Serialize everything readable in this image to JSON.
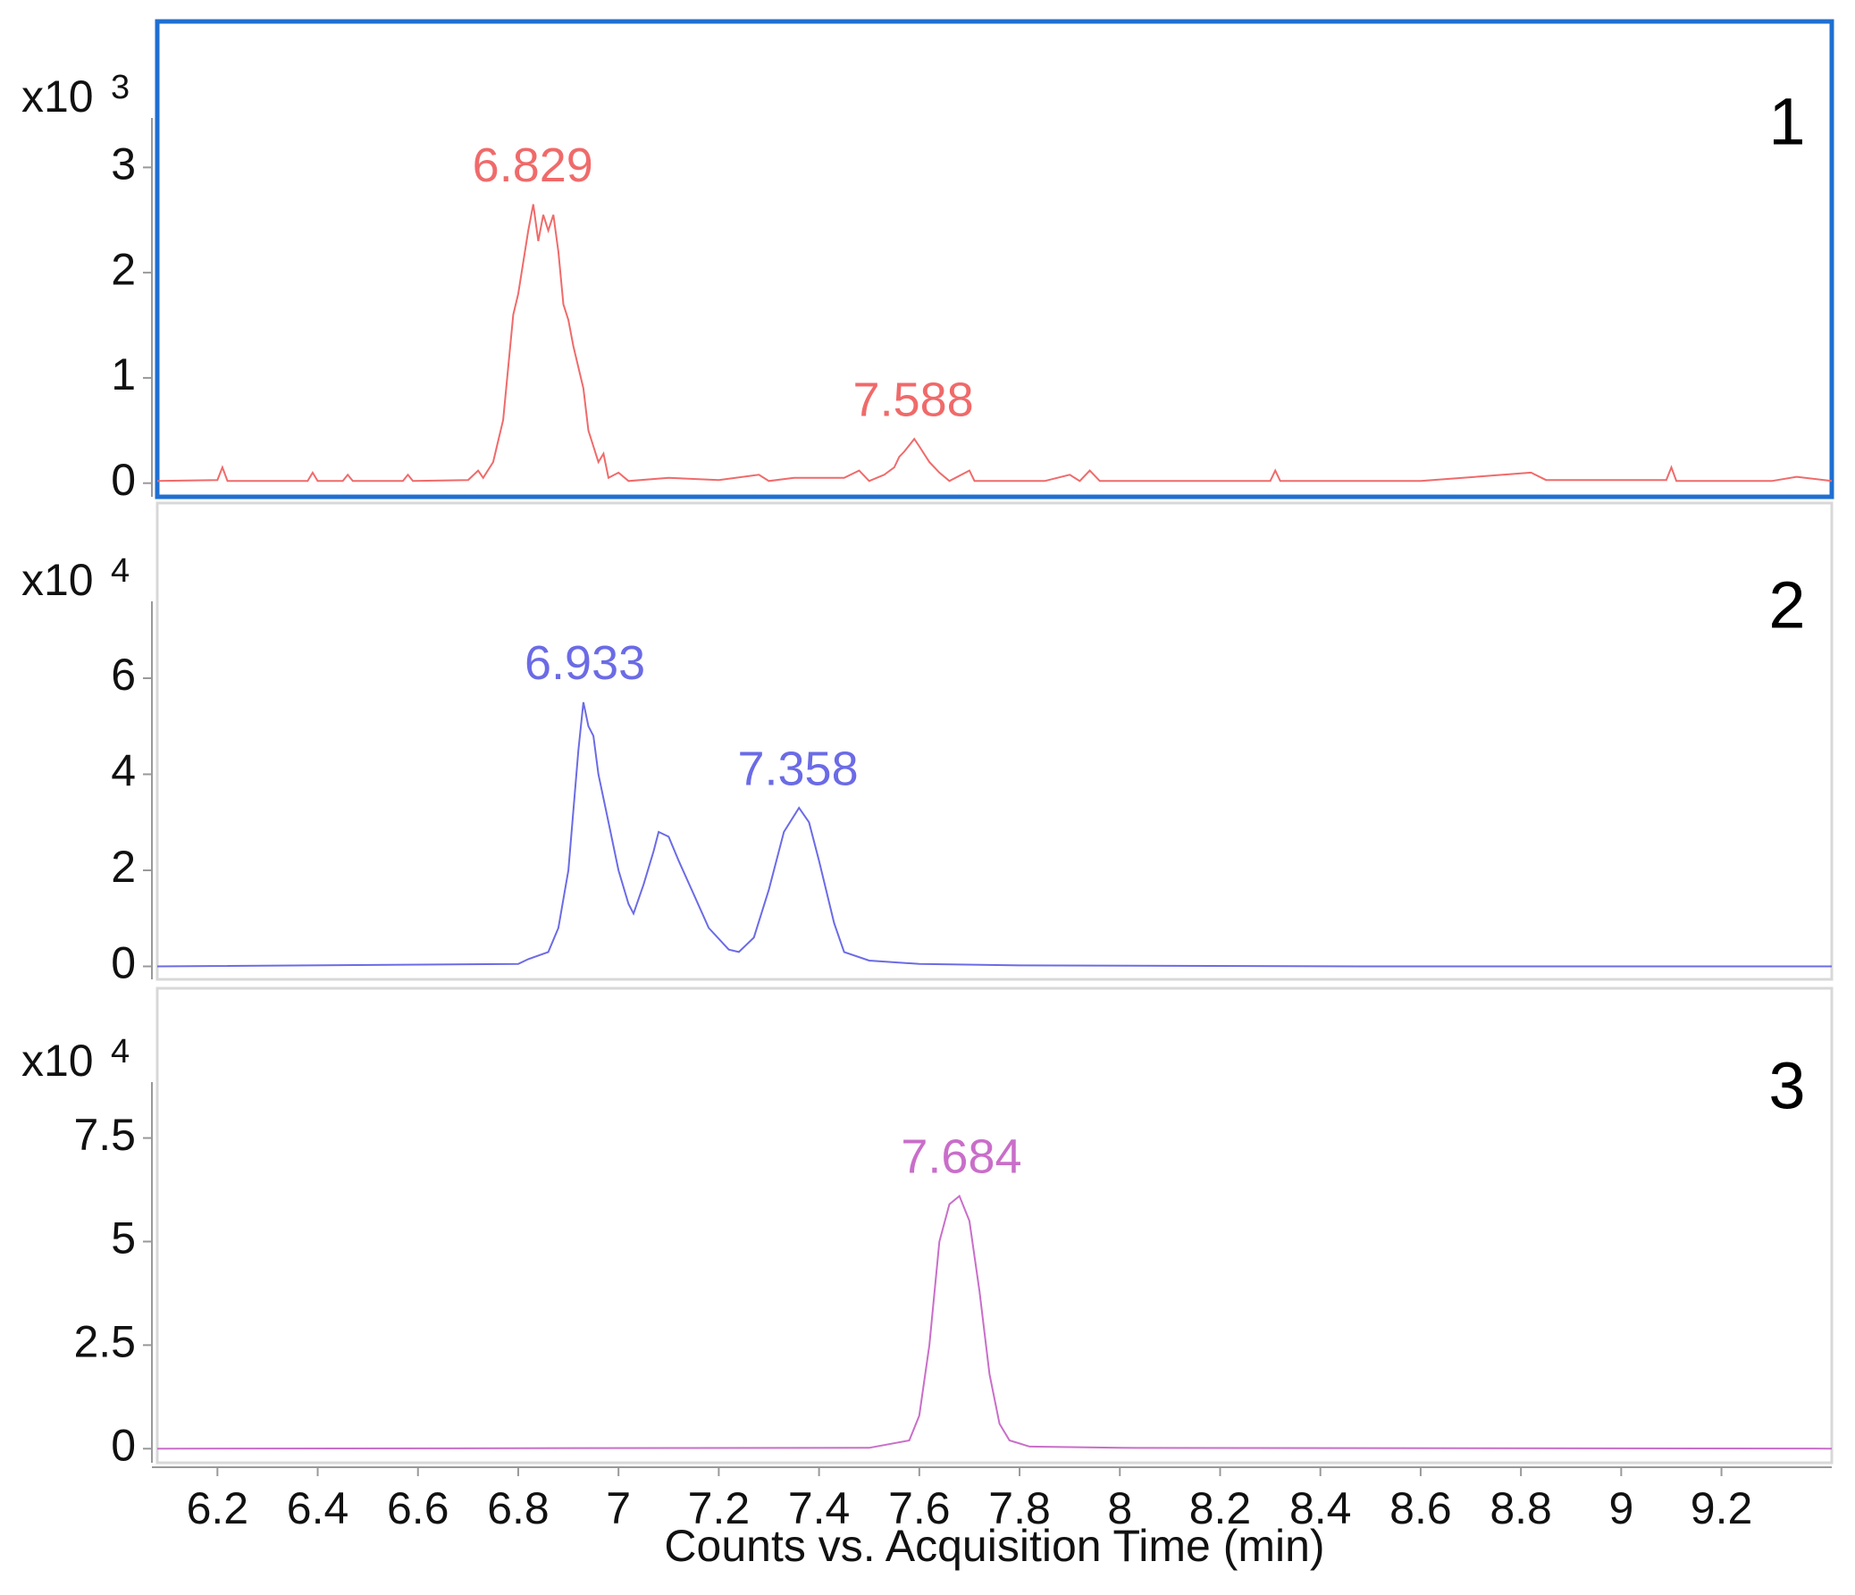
{
  "chart_data": [
    {
      "type": "line",
      "ylabel": "x10",
      "ylabel_exponent": "3",
      "panel_label": "1",
      "selected": true,
      "xlim": [
        6.08,
        9.42
      ],
      "ylim": [
        -0.13,
        3.47
      ],
      "yticks": [
        0,
        1,
        2,
        3
      ],
      "peak_labels": [
        6.829,
        7.588
      ],
      "x": [
        6.08,
        6.2,
        6.21,
        6.22,
        6.38,
        6.39,
        6.4,
        6.45,
        6.46,
        6.47,
        6.57,
        6.58,
        6.59,
        6.7,
        6.72,
        6.73,
        6.75,
        6.77,
        6.79,
        6.8,
        6.82,
        6.83,
        6.84,
        6.85,
        6.86,
        6.87,
        6.88,
        6.89,
        6.9,
        6.91,
        6.93,
        6.94,
        6.95,
        6.96,
        6.97,
        6.98,
        7.0,
        7.02,
        7.1,
        7.2,
        7.28,
        7.3,
        7.35,
        7.45,
        7.48,
        7.5,
        7.53,
        7.55,
        7.56,
        7.57,
        7.59,
        7.6,
        7.62,
        7.64,
        7.66,
        7.7,
        7.71,
        7.85,
        7.9,
        7.92,
        7.94,
        7.96,
        8.1,
        8.3,
        8.31,
        8.32,
        8.6,
        8.82,
        8.85,
        9.09,
        9.1,
        9.11,
        9.3,
        9.35,
        9.42
      ],
      "series": [
        {
          "color": "#f06a6a",
          "values": [
            0.02,
            0.03,
            0.15,
            0.02,
            0.02,
            0.1,
            0.02,
            0.02,
            0.08,
            0.02,
            0.02,
            0.08,
            0.02,
            0.03,
            0.12,
            0.05,
            0.2,
            0.6,
            1.6,
            1.8,
            2.4,
            2.65,
            2.3,
            2.55,
            2.4,
            2.55,
            2.2,
            1.7,
            1.55,
            1.3,
            0.9,
            0.5,
            0.35,
            0.2,
            0.28,
            0.05,
            0.1,
            0.02,
            0.05,
            0.03,
            0.08,
            0.02,
            0.05,
            0.05,
            0.12,
            0.02,
            0.08,
            0.15,
            0.25,
            0.3,
            0.42,
            0.35,
            0.2,
            0.1,
            0.02,
            0.12,
            0.02,
            0.02,
            0.08,
            0.02,
            0.12,
            0.02,
            0.02,
            0.02,
            0.12,
            0.02,
            0.02,
            0.1,
            0.03,
            0.03,
            0.15,
            0.02,
            0.02,
            0.06,
            0.02
          ]
        }
      ]
    },
    {
      "type": "line",
      "ylabel": "x10",
      "ylabel_exponent": "4",
      "panel_label": "2",
      "selected": false,
      "xlim": [
        6.08,
        9.42
      ],
      "ylim": [
        -0.27,
        7.6
      ],
      "yticks": [
        0,
        2,
        4,
        6
      ],
      "peak_labels": [
        6.933,
        7.358
      ],
      "x": [
        6.08,
        6.8,
        6.82,
        6.86,
        6.88,
        6.9,
        6.92,
        6.93,
        6.94,
        6.95,
        6.96,
        6.98,
        7.0,
        7.02,
        7.03,
        7.05,
        7.07,
        7.08,
        7.1,
        7.12,
        7.15,
        7.18,
        7.22,
        7.24,
        7.27,
        7.3,
        7.33,
        7.36,
        7.38,
        7.4,
        7.43,
        7.45,
        7.5,
        7.6,
        7.8,
        8.5,
        9.42
      ],
      "series": [
        {
          "color": "#6b6be6",
          "values": [
            0,
            0.05,
            0.15,
            0.3,
            0.8,
            2.0,
            4.5,
            5.5,
            5.0,
            4.8,
            4.0,
            3.0,
            2.0,
            1.3,
            1.1,
            1.7,
            2.4,
            2.8,
            2.7,
            2.2,
            1.5,
            0.8,
            0.35,
            0.3,
            0.6,
            1.6,
            2.8,
            3.3,
            3.0,
            2.2,
            0.9,
            0.3,
            0.12,
            0.05,
            0.02,
            0,
            0
          ]
        }
      ]
    },
    {
      "type": "line",
      "ylabel": "x10",
      "ylabel_exponent": "4",
      "panel_label": "3",
      "selected": false,
      "xlim": [
        6.08,
        9.42
      ],
      "ylim": [
        -0.34,
        8.85
      ],
      "yticks": [
        0,
        2.5,
        5,
        7.5
      ],
      "peak_labels": [
        7.684
      ],
      "xticks": [
        6.2,
        6.4,
        6.6,
        6.8,
        7,
        7.2,
        7.4,
        7.6,
        7.8,
        8,
        8.2,
        8.4,
        8.6,
        8.8,
        9,
        9.2
      ],
      "xlabel": "Counts vs. Acquisition Time (min)",
      "x": [
        6.08,
        7.5,
        7.58,
        7.6,
        7.62,
        7.64,
        7.66,
        7.68,
        7.7,
        7.72,
        7.74,
        7.76,
        7.78,
        7.82,
        8.0,
        9.42
      ],
      "series": [
        {
          "color": "#c96ec9",
          "values": [
            0,
            0.02,
            0.2,
            0.8,
            2.5,
            5.0,
            5.9,
            6.1,
            5.5,
            3.8,
            1.8,
            0.6,
            0.2,
            0.05,
            0.02,
            0
          ]
        }
      ]
    }
  ]
}
